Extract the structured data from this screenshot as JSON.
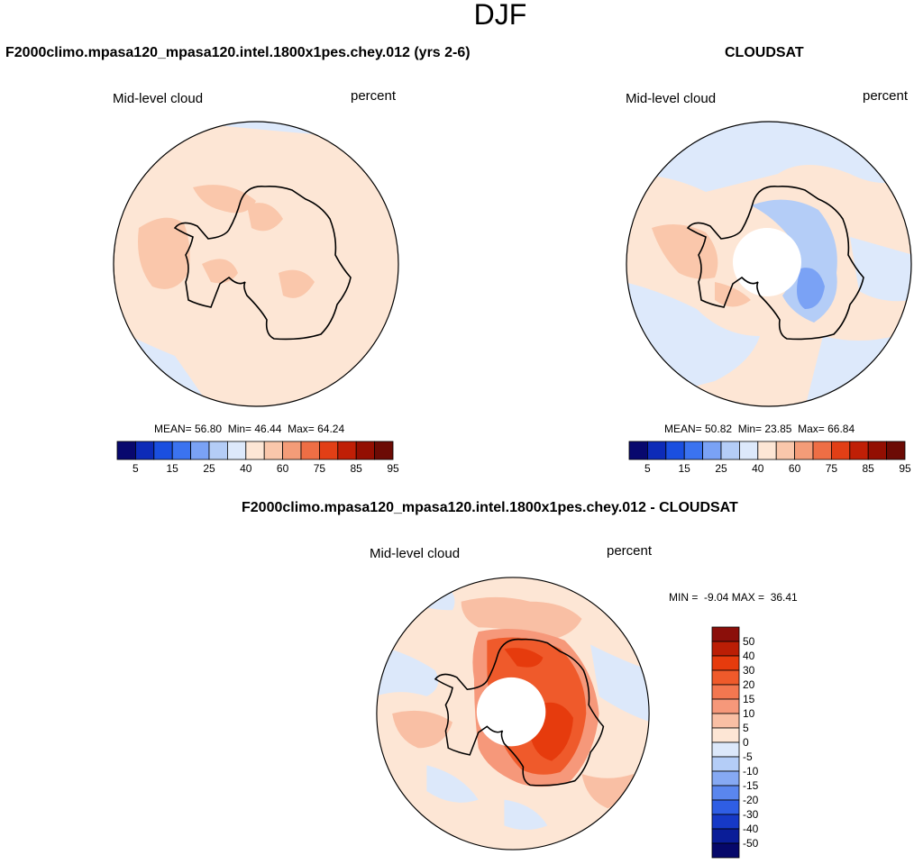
{
  "figure": {
    "title": "DJF"
  },
  "panels": {
    "model": {
      "title": "F2000climo.mpasa120_mpasa120.intel.1800x1pes.chey.012 (yrs 2-6)",
      "variable": "Mid-level cloud",
      "units": "percent",
      "stats": "MEAN= 56.80  Min= 46.44  Max= 64.24",
      "mean": 56.8,
      "min": 46.44,
      "max": 64.24
    },
    "obs": {
      "title": "CLOUDSAT",
      "variable": "Mid-level cloud",
      "units": "percent",
      "stats": "MEAN= 50.82  Min= 23.85  Max= 66.84",
      "mean": 50.82,
      "min": 23.85,
      "max": 66.84
    },
    "diff": {
      "title": "F2000climo.mpasa120_mpasa120.intel.1800x1pes.chey.012 - CLOUDSAT",
      "variable": "Mid-level cloud",
      "units": "percent",
      "stats": "MIN =  -9.04 MAX =  36.41",
      "min": -9.04,
      "max": 36.41
    }
  },
  "colorbar_main": {
    "labels": [
      "5",
      "15",
      "25",
      "40",
      "60",
      "75",
      "85",
      "95"
    ],
    "colors": [
      "#08086e",
      "#0d2bb8",
      "#1a4fe0",
      "#3b73f0",
      "#7aa2f5",
      "#b4cdf7",
      "#dde9fb",
      "#fde6d5",
      "#fac7ab",
      "#f49c78",
      "#ee6e45",
      "#e23f16",
      "#c01f06",
      "#930f02",
      "#6c0b05"
    ]
  },
  "colorbar_diff": {
    "labels": [
      "50",
      "40",
      "30",
      "20",
      "15",
      "10",
      "5",
      "0",
      "-5",
      "-10",
      "-15",
      "-20",
      "-30",
      "-40",
      "-50"
    ],
    "colors": [
      "#8b0f0a",
      "#bb1e05",
      "#e63b0d",
      "#ef5a2b",
      "#f37750",
      "#f6987a",
      "#f9bfa4",
      "#fde6d5",
      "#dce8fa",
      "#b4cdf7",
      "#86a9f3",
      "#5a86ee",
      "#2f5ee4",
      "#1639c6",
      "#0a1d98",
      "#06086a"
    ]
  },
  "chart_data": {
    "type": "polar-stereographic contour maps (South Pole)",
    "figure_title": "DJF",
    "field": "Mid-level cloud",
    "units": "percent",
    "panels": [
      {
        "name": "model",
        "mean": 56.8,
        "min": 46.44,
        "max": 64.24
      },
      {
        "name": "CLOUDSAT",
        "mean": 50.82,
        "min": 23.85,
        "max": 66.84
      },
      {
        "name": "model - CLOUDSAT",
        "min": -9.04,
        "max": 36.41
      }
    ],
    "main_contour_levels": [
      5,
      15,
      25,
      40,
      60,
      75,
      85,
      95
    ],
    "diff_contour_levels": [
      -50,
      -40,
      -30,
      -20,
      -15,
      -10,
      -5,
      0,
      5,
      10,
      15,
      20,
      30,
      40,
      50
    ]
  }
}
